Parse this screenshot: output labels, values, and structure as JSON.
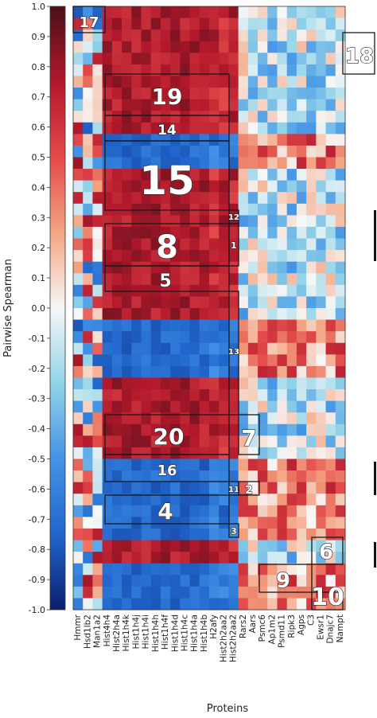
{
  "chart_data": {
    "type": "heatmap",
    "ylabel": "Pairwise Spearman",
    "xlabel": "Proteins",
    "colorbar": {
      "range": [
        -1.0,
        1.0
      ],
      "ticks": [
        "1.0",
        "0.9",
        "0.8",
        "0.7",
        "0.6",
        "0.5",
        "0.4",
        "0.3",
        "0.2",
        "0.1",
        "0.0",
        "-0.1",
        "-0.2",
        "-0.3",
        "-0.4",
        "-0.5",
        "-0.6",
        "-0.7",
        "-0.8",
        "-0.9",
        "-1.0"
      ],
      "colors": [
        "#4a0f1a",
        "#b2182b",
        "#e34a4a",
        "#f4a582",
        "#f7f7f7",
        "#92d3e8",
        "#4393e6",
        "#2166cc",
        "#0a1f6e"
      ]
    },
    "proteins": [
      "Hmmr",
      "Hsd1lb2",
      "Man1a2",
      "Hist4h4",
      "Hist2h4a",
      "Hist1h4k",
      "Hist1h4j",
      "Hist1h4i",
      "Hist1h4h",
      "Hist1h4f",
      "Hist1h4d",
      "Hist1h4c",
      "Hist1h4a",
      "Hist1h4b",
      "H2afy",
      "Hist2h2aa2",
      "Hist2h2aa2",
      "Rars2",
      "Aars",
      "Psmc6",
      "Ap1m2",
      "Psmd11",
      "Ripk3",
      "Agps",
      "C3",
      "Ewsr1",
      "Dnajc7",
      "Nampt"
    ],
    "clusters": [
      {
        "label": "17"
      },
      {
        "label": "18"
      },
      {
        "label": "19"
      },
      {
        "label": "14"
      },
      {
        "label": "15"
      },
      {
        "label": "12"
      },
      {
        "label": "8"
      },
      {
        "label": "1"
      },
      {
        "label": "5"
      },
      {
        "label": "13"
      },
      {
        "label": "20"
      },
      {
        "label": "7"
      },
      {
        "label": "16"
      },
      {
        "label": "11"
      },
      {
        "label": "2"
      },
      {
        "label": "4"
      },
      {
        "label": "3"
      },
      {
        "label": "6"
      },
      {
        "label": "9"
      },
      {
        "label": "10"
      }
    ]
  }
}
